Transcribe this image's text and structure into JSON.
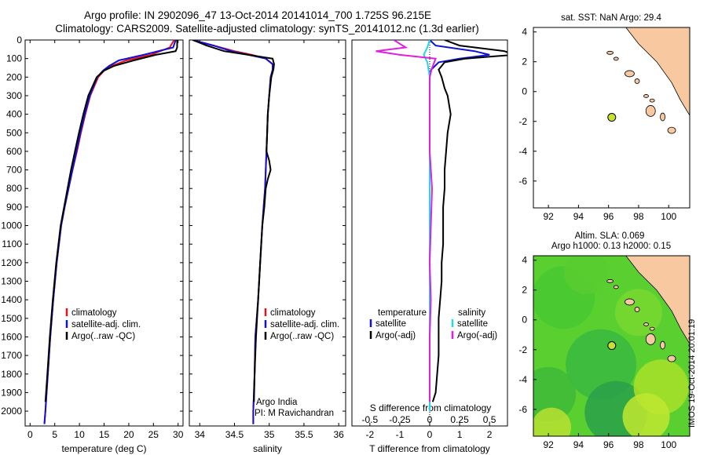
{
  "header": {
    "line1": "Argo profile: IN 2902096_47 13-Oct-2014 20141014_700 1.725S 96.215E",
    "line2": "Climatology: CARS2009. Satellite-adjusted climatology: synTS_20141012.nc (1.3d earlier)"
  },
  "colors": {
    "climatology": "#e8101a",
    "satellite": "#1010d8",
    "argo": "#000000",
    "cyan": "#20d8e8",
    "magenta": "#e020e0",
    "land": "#f8c8a0",
    "float_marker": "#c8e030"
  },
  "chart_data": [
    {
      "type": "line",
      "name": "temperature",
      "xlabel": "temperature (deg C)",
      "ylabel": "",
      "xlim": [
        -1,
        31
      ],
      "ylim": [
        2080,
        0
      ],
      "xticks": [
        "0",
        "5",
        "10",
        "15",
        "20",
        "25",
        "30"
      ],
      "yticks": [
        "0",
        "100",
        "200",
        "300",
        "400",
        "500",
        "600",
        "700",
        "800",
        "900",
        "1000",
        "1100",
        "1200",
        "1300",
        "1400",
        "1500",
        "1600",
        "1700",
        "1800",
        "1900",
        "2000"
      ],
      "legend": [
        "climatology",
        "satellite-adj. clim.",
        "Argo(..raw -QC)"
      ],
      "series": [
        {
          "name": "climatology",
          "depth": [
            0,
            40,
            80,
            110,
            140,
            165,
            200,
            300,
            400,
            500,
            600,
            700,
            800,
            900,
            1000,
            1200,
            1400,
            1600,
            1800,
            2000,
            2070
          ],
          "values": [
            29.2,
            28.3,
            24.5,
            19.5,
            16.5,
            15.0,
            13.8,
            12.2,
            11.2,
            10.3,
            9.5,
            8.6,
            7.8,
            7.0,
            6.3,
            5.4,
            4.7,
            4.1,
            3.6,
            3.1,
            2.9
          ]
        },
        {
          "name": "satellite-adj. clim.",
          "depth": [
            0,
            40,
            80,
            110,
            140,
            165,
            200,
            300,
            400,
            500,
            600,
            700,
            800,
            900,
            1000,
            1200,
            1400,
            1600,
            1800,
            2000,
            2070
          ],
          "values": [
            29.5,
            29.0,
            23.0,
            18.0,
            16.0,
            14.8,
            13.6,
            12.1,
            11.1,
            10.2,
            9.4,
            8.6,
            7.8,
            7.0,
            6.3,
            5.4,
            4.7,
            4.1,
            3.6,
            3.1,
            2.9
          ]
        },
        {
          "name": "Argo(..raw -QC)",
          "depth": [
            0,
            40,
            60,
            80,
            110,
            140,
            165,
            200,
            300,
            400,
            500,
            600,
            700,
            800,
            900,
            1000,
            1200,
            1400,
            1600,
            1800,
            1950
          ],
          "values": [
            29.8,
            29.8,
            29.5,
            25.5,
            21.0,
            17.0,
            15.0,
            13.5,
            11.8,
            10.8,
            9.9,
            9.1,
            8.3,
            7.6,
            6.9,
            6.2,
            5.3,
            4.6,
            4.0,
            3.5,
            3.1
          ]
        }
      ]
    },
    {
      "type": "line",
      "name": "salinity",
      "xlabel": "salinity",
      "xlim": [
        33.85,
        36.1
      ],
      "ylim": [
        2080,
        0
      ],
      "xticks": [
        "34",
        "34.5",
        "35",
        "35.5",
        "36"
      ],
      "legend": [
        "climatology",
        "satellite-adj. clim.",
        "Argo(..raw -QC)"
      ],
      "series": [
        {
          "name": "climatology",
          "depth": [
            0,
            30,
            60,
            80,
            100,
            130,
            160,
            200,
            300,
            400,
            500,
            600,
            700,
            800,
            900,
            1000,
            1200,
            1400,
            1600,
            1800,
            2000,
            2070
          ],
          "values": [
            33.9,
            34.2,
            34.5,
            34.75,
            34.95,
            35.05,
            35.05,
            35.02,
            35.0,
            34.98,
            34.97,
            34.96,
            34.95,
            34.94,
            34.92,
            34.9,
            34.87,
            34.84,
            34.8,
            34.79,
            34.77,
            34.77
          ]
        },
        {
          "name": "satellite-adj. clim.",
          "depth": [
            0,
            30,
            60,
            80,
            100,
            130,
            160,
            200,
            300,
            400,
            500,
            600,
            700,
            800,
            900,
            1000,
            1200,
            1400,
            1600,
            1800,
            2000,
            2070
          ],
          "values": [
            33.9,
            34.2,
            34.45,
            34.7,
            34.95,
            35.05,
            35.05,
            35.02,
            35.0,
            34.98,
            34.97,
            34.96,
            34.95,
            34.94,
            34.92,
            34.9,
            34.87,
            34.84,
            34.8,
            34.79,
            34.77,
            34.77
          ]
        },
        {
          "name": "Argo(..raw -QC)",
          "depth": [
            0,
            30,
            60,
            80,
            100,
            130,
            160,
            200,
            300,
            400,
            500,
            600,
            650,
            700,
            750,
            800,
            900,
            1000,
            1200,
            1400,
            1600,
            1800,
            1950
          ],
          "values": [
            33.9,
            34.1,
            34.35,
            34.7,
            35.05,
            35.07,
            35.06,
            35.03,
            35.0,
            34.98,
            34.97,
            34.96,
            35.0,
            35.02,
            34.98,
            34.95,
            34.93,
            34.9,
            34.87,
            34.84,
            34.81,
            34.79,
            34.78
          ]
        }
      ],
      "annotations": [
        "Argo India",
        "PI: M Ravichandran"
      ]
    },
    {
      "type": "line",
      "name": "difference",
      "xlabel": "T difference from climatology",
      "top_xlabel": "S difference from climatology",
      "xlim": [
        -2.6,
        2.6
      ],
      "ylim": [
        2080,
        0
      ],
      "xticks": [
        "-2",
        "-1",
        "0",
        "1",
        "2"
      ],
      "top_xticks": [
        "-0.5",
        "-0.25",
        "0",
        "0.25",
        "0.5"
      ],
      "legend_temperature_title": "temperature",
      "legend_salinity_title": "salinity",
      "legend": [
        "satellite",
        "Argo(-adj)",
        "satellite",
        "Argo(-adj)"
      ],
      "series": [
        {
          "name": "T satellite",
          "depth": [
            0,
            30,
            60,
            80,
            100,
            120,
            160,
            200,
            400,
            600,
            800,
            1000,
            1500,
            2000
          ],
          "values": [
            0,
            0.2,
            1.5,
            2.0,
            1.0,
            0.3,
            0.05,
            0,
            0,
            0,
            0,
            0,
            0,
            0
          ]
        },
        {
          "name": "T Argo(-adj)",
          "depth": [
            0,
            30,
            60,
            80,
            100,
            120,
            160,
            200,
            260,
            300,
            400,
            500,
            600,
            700,
            800,
            900,
            1000,
            1100,
            1200,
            1300,
            1400,
            1500,
            1600,
            1700,
            1800,
            1900,
            1950
          ],
          "values": [
            0.5,
            1.0,
            2.5,
            2.8,
            1.2,
            0.5,
            0.3,
            0.4,
            0.5,
            0.6,
            0.7,
            0.6,
            0.55,
            0.5,
            0.5,
            0.45,
            0.45,
            0.45,
            0.4,
            0.4,
            0.35,
            0.3,
            0.3,
            0.3,
            0.25,
            0.2,
            0.1
          ]
        },
        {
          "name": "S satellite",
          "depth": [
            0,
            40,
            80,
            120,
            200,
            400,
            800,
            1200,
            1600,
            2000
          ],
          "values": [
            0,
            -0.02,
            -0.05,
            -0.02,
            0,
            0,
            0,
            0,
            0,
            0
          ]
        },
        {
          "name": "S Argo(-adj)",
          "depth": [
            0,
            40,
            60,
            80,
            100,
            150,
            200,
            400,
            600,
            800,
            1000,
            1200,
            1400,
            1600,
            1800,
            1950
          ],
          "values": [
            -0.3,
            -0.2,
            -0.45,
            -0.25,
            0.05,
            0.02,
            0,
            0,
            0,
            0.02,
            0.01,
            0,
            0.01,
            0,
            0,
            0
          ]
        }
      ]
    },
    {
      "type": "scatter",
      "name": "sst-map",
      "title": "sat. SST: NaN Argo: 29.4",
      "xlim": [
        91,
        101.4
      ],
      "ylim": [
        -7.8,
        4.3
      ],
      "xticks": [
        "92",
        "94",
        "96",
        "98",
        "100"
      ],
      "yticks": [
        "4",
        "2",
        "0",
        "-2",
        "-4",
        "-6"
      ],
      "float": {
        "lon": 96.215,
        "lat": -1.725
      }
    },
    {
      "type": "heatmap",
      "name": "sla-map",
      "title1": "Altim. SLA: 0.069",
      "title2": "Argo h1000: 0.13 h2000: 0.15",
      "xlim": [
        91,
        101.4
      ],
      "ylim": [
        -7.8,
        4.3
      ],
      "xticks": [
        "92",
        "94",
        "96",
        "98",
        "100"
      ],
      "yticks": [
        "4",
        "2",
        "0",
        "-2",
        "-4",
        "-6"
      ],
      "float": {
        "lon": 96.215,
        "lat": -1.725
      }
    }
  ],
  "side_label": "IMOS 19-Oct-2014 20:01:19"
}
